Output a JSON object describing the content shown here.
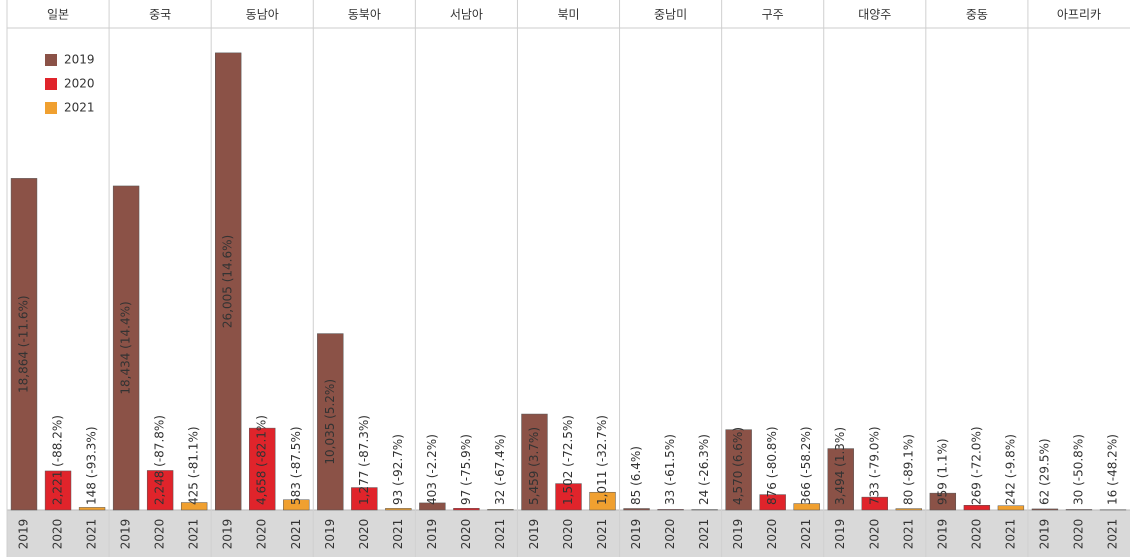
{
  "chart_data": {
    "type": "bar",
    "categories": [
      "일본",
      "중국",
      "동남아",
      "동북아",
      "서남아",
      "북미",
      "중남미",
      "구주",
      "대양주",
      "중동",
      "아프리카"
    ],
    "series": [
      {
        "name": "2019",
        "color": "#8b5247",
        "values": [
          18864,
          18434,
          26005,
          10035,
          403,
          5459,
          85,
          4570,
          3494,
          959,
          62
        ],
        "value_labels": [
          "18,864 (-11.6%)",
          "18,434 (14.4%)",
          "26,005 (14.6%)",
          "10,035 (5.2%)",
          "403 (-2.2%)",
          "5,459 (3.7%)",
          "85 (6.4%)",
          "4,570 (6.6%)",
          "3,494 (1.3%)",
          "959 (1.1%)",
          "62 (29.5%)"
        ]
      },
      {
        "name": "2020",
        "color": "#e0242b",
        "values": [
          2221,
          2248,
          4658,
          1277,
          97,
          1502,
          33,
          876,
          733,
          269,
          30
        ],
        "value_labels": [
          "2,221 (-88.2%)",
          "2,248 (-87.8%)",
          "4,658 (-82.1%)",
          "1,277 (-87.3%)",
          "97 (-75.9%)",
          "1,502 (-72.5%)",
          "33 (-61.5%)",
          "876 (-80.8%)",
          "733 (-79.0%)",
          "269 (-72.0%)",
          "30 (-50.8%)"
        ]
      },
      {
        "name": "2021",
        "color": "#f0a030",
        "values": [
          148,
          425,
          583,
          93,
          32,
          1011,
          24,
          366,
          80,
          242,
          16
        ],
        "value_labels": [
          "148 (-93.3%)",
          "425 (-81.1%)",
          "583 (-87.5%)",
          "93 (-92.7%)",
          "32 (-67.4%)",
          "1,011 (-32.7%)",
          "24 (-26.3%)",
          "366 (-58.2%)",
          "80 (-89.1%)",
          "242 (-9.8%)",
          "16 (-48.2%)"
        ]
      }
    ],
    "legend": "top-left"
  }
}
